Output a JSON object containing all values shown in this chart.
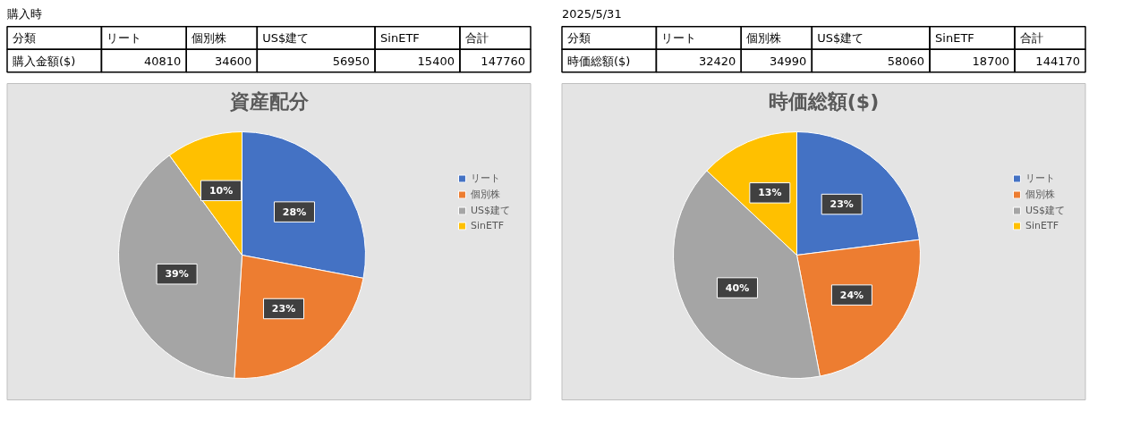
{
  "chart_data": [
    {
      "type": "pie",
      "title": "資産配分",
      "categories": [
        "リート",
        "個別株",
        "US$建て",
        "SinETF"
      ],
      "values": [
        28,
        23,
        39,
        10
      ],
      "value_labels": [
        "28%",
        "23%",
        "39%",
        "10%"
      ],
      "colors": [
        "#4472c4",
        "#ed7d31",
        "#a5a5a5",
        "#ffc000"
      ],
      "legend": "right",
      "annotations": [
        "購入時",
        "分類",
        "リート",
        "個別株",
        "US$建て",
        "SinETF",
        "合計",
        "購入金額($)",
        "40810",
        "34600",
        "56950",
        "15400",
        "147760"
      ]
    },
    {
      "type": "pie",
      "title": "時価総額($)",
      "categories": [
        "リート",
        "個別株",
        "US$建て",
        "SinETF"
      ],
      "values": [
        23,
        24,
        40,
        13
      ],
      "value_labels": [
        "23%",
        "24%",
        "40%",
        "13%"
      ],
      "colors": [
        "#4472c4",
        "#ed7d31",
        "#a5a5a5",
        "#ffc000"
      ],
      "legend": "right",
      "annotations": [
        "2025/5/31",
        "分類",
        "リート",
        "個別株",
        "US$建て",
        "SinETF",
        "合計",
        "時価総額($)",
        "32420",
        "34990",
        "58060",
        "18700",
        "144170"
      ]
    }
  ]
}
